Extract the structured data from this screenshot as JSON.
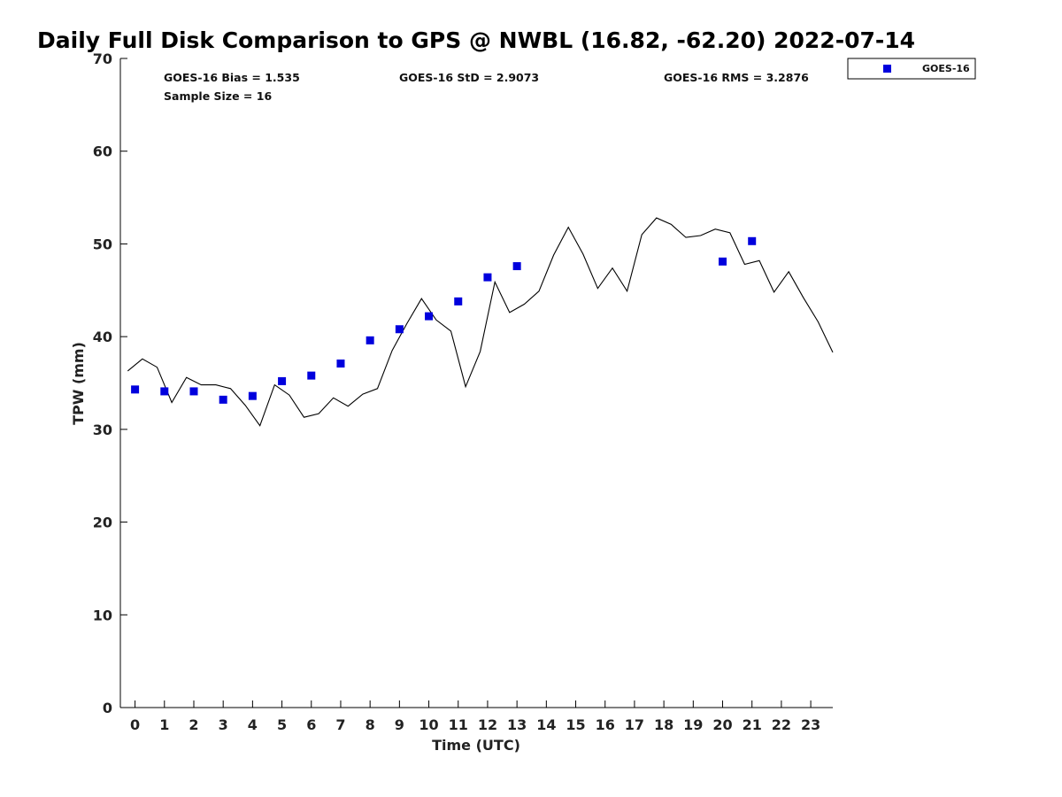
{
  "chart_data": {
    "type": "scatter",
    "title": "Daily Full Disk Comparison to GPS @ NWBL (16.82, -62.20) 2022-07-14",
    "xlabel": "Time (UTC)",
    "ylabel": "TPW (mm)",
    "xlim": [
      -0.5,
      23.75
    ],
    "ylim": [
      0,
      70
    ],
    "xticks": [
      0,
      1,
      2,
      3,
      4,
      5,
      6,
      7,
      8,
      9,
      10,
      11,
      12,
      13,
      14,
      15,
      16,
      17,
      18,
      19,
      20,
      21,
      22,
      23
    ],
    "yticks": [
      0,
      10,
      20,
      30,
      40,
      50,
      60,
      70
    ],
    "grid": false,
    "legend_position": "top-right-outside",
    "stats": {
      "bias": "GOES-16 Bias = 1.535",
      "std": "GOES-16 StD = 2.9073",
      "rms": "GOES-16 RMS = 3.2876",
      "sample_size": "Sample Size = 16"
    },
    "series": [
      {
        "name": "GOES-16",
        "kind": "scatter",
        "marker": "square",
        "color": "#0000dd",
        "x": [
          0,
          1,
          2,
          3,
          4,
          5,
          6,
          7,
          8,
          9,
          10,
          11,
          12,
          13,
          20,
          21
        ],
        "y": [
          34.3,
          34.1,
          34.1,
          33.2,
          33.6,
          35.2,
          35.8,
          37.1,
          39.6,
          40.8,
          42.2,
          43.8,
          46.4,
          47.6,
          48.1,
          50.3
        ]
      },
      {
        "kind": "line",
        "color": "#000000",
        "x": [
          -0.25,
          0.25,
          0.75,
          1.25,
          1.75,
          2.25,
          2.75,
          3.25,
          3.75,
          4.25,
          4.75,
          5.25,
          5.75,
          6.25,
          6.75,
          7.25,
          7.75,
          8.25,
          8.75,
          9.25,
          9.75,
          10.25,
          10.75,
          11.25,
          11.75,
          12.25,
          12.75,
          13.25,
          13.75,
          14.25,
          14.75,
          15.25,
          15.75,
          16.25,
          16.75,
          17.25,
          17.75,
          18.25,
          18.75,
          19.25,
          19.75,
          20.25,
          20.75,
          21.25,
          21.75,
          22.25,
          22.75,
          23.25,
          23.75
        ],
        "y": [
          36.3,
          37.6,
          36.7,
          32.9,
          35.6,
          34.8,
          34.8,
          34.4,
          32.6,
          30.4,
          34.8,
          33.7,
          31.3,
          31.7,
          33.4,
          32.5,
          33.8,
          34.4,
          38.5,
          41.4,
          44.1,
          41.8,
          40.6,
          34.6,
          38.4,
          45.9,
          42.6,
          43.5,
          44.9,
          48.8,
          51.8,
          48.9,
          45.2,
          47.4,
          44.9,
          51.0,
          52.8,
          52.1,
          50.7,
          50.9,
          51.6,
          51.2,
          47.8,
          48.2,
          44.8,
          47.0,
          44.2,
          41.6,
          38.3
        ]
      }
    ]
  }
}
